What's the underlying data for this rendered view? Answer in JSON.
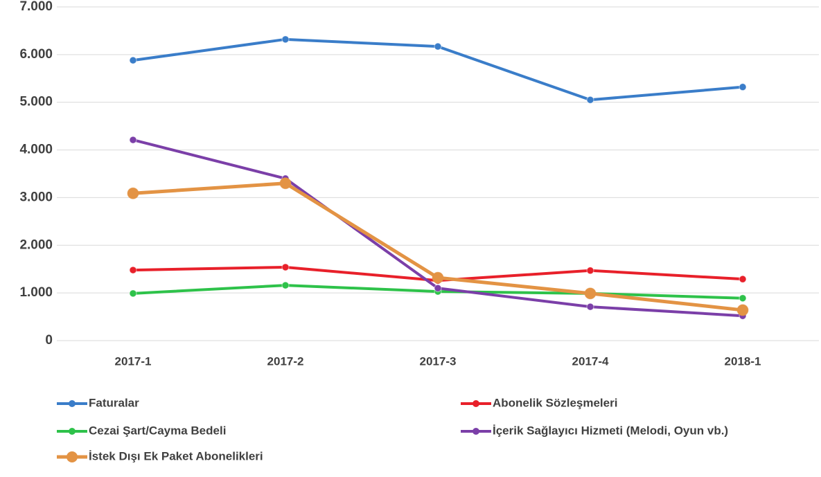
{
  "chart_data": {
    "type": "line",
    "categories": [
      "2017-1",
      "2017-2",
      "2017-3",
      "2017-4",
      "2018-1"
    ],
    "series": [
      {
        "name": "Faturalar",
        "color": "#3a7dc9",
        "values": [
          5880,
          6320,
          6170,
          5050,
          5320
        ]
      },
      {
        "name": "Abonelik Sözleşmeleri",
        "color": "#e8202a",
        "values": [
          1480,
          1540,
          1260,
          1470,
          1290
        ]
      },
      {
        "name": "Cezai Şart/Cayma Bedeli",
        "color": "#2ec24a",
        "values": [
          990,
          1160,
          1030,
          990,
          890
        ]
      },
      {
        "name": "İçerik Sağlayıcı Hizmeti (Melodi, Oyun vb.)",
        "color": "#7b3fa8",
        "values": [
          4210,
          3400,
          1100,
          710,
          520
        ]
      },
      {
        "name": "İstek Dışı Ek Paket Abonelikleri",
        "color": "#e39344",
        "values": [
          3090,
          3300,
          1320,
          990,
          640
        ]
      }
    ],
    "ylim": [
      0,
      7000
    ],
    "yticks": [
      0,
      {
        "value": 1000,
        "label": "1.000"
      },
      {
        "value": 2000,
        "label": "2.000"
      },
      {
        "value": 3000,
        "label": "3.000"
      },
      {
        "value": 4000,
        "label": "4.000"
      },
      {
        "value": 5000,
        "label": "5.000"
      },
      {
        "value": 6000,
        "label": "6.000"
      },
      {
        "value": 7000,
        "label": "7.000"
      }
    ],
    "grid": true,
    "legend": "bottom"
  }
}
